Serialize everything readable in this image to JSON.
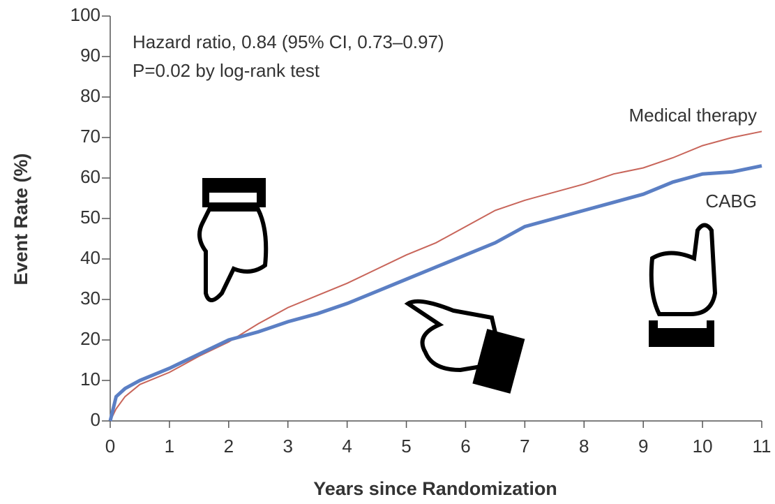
{
  "chart_data": {
    "type": "line",
    "annotations": [
      "Hazard ratio, 0.84 (95% CI, 0.73–0.97)",
      "P=0.02 by log-rank test"
    ],
    "x_label": "Years since Randomization",
    "y_label": "Event Rate (%)",
    "x": [
      0,
      0.1,
      0.25,
      0.5,
      1,
      1.5,
      2,
      2.5,
      3,
      3.5,
      4,
      4.5,
      5,
      5.5,
      6,
      6.5,
      7,
      7.5,
      8,
      8.5,
      9,
      9.5,
      10,
      10.5,
      11
    ],
    "series": [
      {
        "name": "Medical therapy",
        "color": "#c8655a",
        "values": [
          0,
          3,
          6,
          9,
          12,
          16,
          19.5,
          24,
          28,
          31,
          34,
          37.5,
          41,
          44,
          48,
          52,
          54.5,
          56.5,
          58.5,
          61,
          62.5,
          65,
          68,
          70,
          71.5
        ]
      },
      {
        "name": "CABG",
        "color": "#5b7fc4",
        "values": [
          0,
          6,
          8,
          10,
          13,
          16.5,
          20,
          22,
          24.5,
          26.5,
          29,
          32,
          35,
          38,
          41,
          44,
          48,
          50,
          52,
          54,
          56,
          59,
          61,
          61.5,
          63
        ]
      }
    ],
    "xlim": [
      0,
      11
    ],
    "xticks": [
      0,
      1,
      2,
      3,
      4,
      5,
      6,
      7,
      8,
      9,
      10,
      11
    ],
    "ylim": [
      0,
      100
    ],
    "yticks": [
      0,
      10,
      20,
      30,
      40,
      50,
      60,
      70,
      80,
      90,
      100
    ]
  }
}
